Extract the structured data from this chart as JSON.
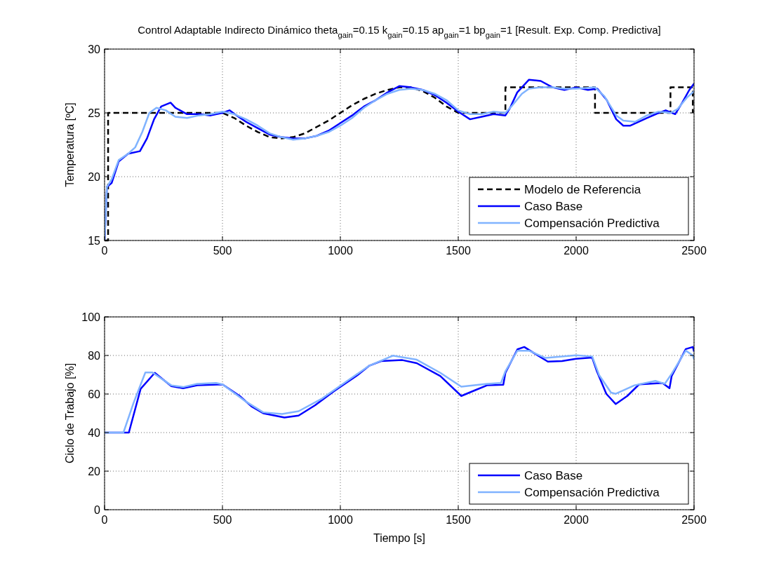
{
  "chart_data": [
    {
      "type": "line",
      "title": "Control Adaptable Indirecto Dinámico theta$_{gain}$=0.15 k$_{gain}$=0.15 ap$_{gain}$=1 bp$_{gain}$=1 [Result. Exp. Comp. Predictiva]",
      "ylabel": "Temperatura [ºC]",
      "xlim": [
        0,
        2500
      ],
      "xticks": [
        0,
        500,
        1000,
        1500,
        2000,
        2500
      ],
      "ylim": [
        15,
        30
      ],
      "yticks": [
        15,
        20,
        25,
        30
      ],
      "grid": true,
      "legend": "bottom right",
      "series": [
        {
          "name": "Modelo de Referencia",
          "color": "#000000",
          "line_style": "dashed",
          "x": [
            0,
            15,
            15,
            500,
            550,
            600,
            650,
            700,
            750,
            800,
            850,
            900,
            950,
            1000,
            1050,
            1100,
            1150,
            1200,
            1250,
            1300,
            1350,
            1400,
            1450,
            1500,
            1700,
            1700,
            2080,
            2080,
            2400,
            2400,
            2495,
            2495
          ],
          "values": [
            15,
            15,
            25,
            25,
            24.6,
            24.0,
            23.5,
            23.1,
            23.0,
            23.1,
            23.4,
            23.9,
            24.4,
            25.0,
            25.6,
            26.1,
            26.5,
            26.8,
            27.0,
            27.0,
            26.7,
            26.2,
            25.5,
            25.0,
            25,
            27,
            27,
            25,
            25,
            27,
            27,
            25
          ]
        },
        {
          "name": "Caso Base",
          "color": "#0000ff",
          "x": [
            0,
            10,
            30,
            60,
            100,
            150,
            180,
            210,
            240,
            280,
            300,
            350,
            400,
            450,
            500,
            530,
            560,
            600,
            650,
            700,
            750,
            800,
            850,
            900,
            950,
            1000,
            1050,
            1100,
            1150,
            1200,
            1250,
            1300,
            1350,
            1400,
            1450,
            1500,
            1550,
            1600,
            1650,
            1700,
            1720,
            1750,
            1800,
            1850,
            1900,
            1950,
            2000,
            2050,
            2090,
            2130,
            2170,
            2200,
            2230,
            2300,
            2350,
            2380,
            2420,
            2450,
            2480,
            2500
          ],
          "values": [
            15,
            19.2,
            19.5,
            21.2,
            21.8,
            22.0,
            23.0,
            24.5,
            25.5,
            25.8,
            25.4,
            24.9,
            24.9,
            24.8,
            25.0,
            25.2,
            24.8,
            24.3,
            23.8,
            23.3,
            23.1,
            23.0,
            23.0,
            23.2,
            23.6,
            24.2,
            24.8,
            25.5,
            26.0,
            26.6,
            27.1,
            27.0,
            26.8,
            26.4,
            25.8,
            25.1,
            24.5,
            24.7,
            24.9,
            24.8,
            25.4,
            26.6,
            27.6,
            27.5,
            27.0,
            26.8,
            27.0,
            26.8,
            26.9,
            26.0,
            24.5,
            24.0,
            24.0,
            24.6,
            25.0,
            25.2,
            24.9,
            25.8,
            26.8,
            27.3
          ]
        },
        {
          "name": "Compensación Predictiva",
          "color": "#80b3ff",
          "x": [
            0,
            10,
            30,
            60,
            100,
            130,
            160,
            190,
            220,
            260,
            300,
            350,
            400,
            450,
            500,
            550,
            600,
            650,
            700,
            750,
            800,
            850,
            900,
            950,
            1000,
            1050,
            1100,
            1150,
            1200,
            1250,
            1300,
            1350,
            1400,
            1450,
            1500,
            1550,
            1600,
            1650,
            1700,
            1730,
            1770,
            1800,
            1850,
            1900,
            1950,
            2000,
            2080,
            2120,
            2170,
            2200,
            2250,
            2300,
            2350,
            2400,
            2430,
            2470,
            2500
          ],
          "values": [
            15,
            19.2,
            19.8,
            21.3,
            21.8,
            22.3,
            23.5,
            25.0,
            25.4,
            25.2,
            24.7,
            24.6,
            24.8,
            24.9,
            25.1,
            24.9,
            24.5,
            24.0,
            23.4,
            23.1,
            22.9,
            23.0,
            23.2,
            23.5,
            24.0,
            24.6,
            25.4,
            26.0,
            26.5,
            26.8,
            26.9,
            26.8,
            26.5,
            26.0,
            25.2,
            24.9,
            24.9,
            25.1,
            25.0,
            25.6,
            26.5,
            26.9,
            27.0,
            27.0,
            26.9,
            26.9,
            27.0,
            26.3,
            24.8,
            24.4,
            24.3,
            24.8,
            25.1,
            25.0,
            25.3,
            26.2,
            26.7
          ]
        }
      ]
    },
    {
      "type": "line",
      "xlabel": "Tiempo [s]",
      "ylabel": "Ciclo de Trabajo [%]",
      "xlim": [
        0,
        2500
      ],
      "xticks": [
        0,
        500,
        1000,
        1500,
        2000,
        2500
      ],
      "ylim": [
        0,
        100
      ],
      "yticks": [
        0,
        20,
        40,
        60,
        80,
        100
      ],
      "grid": true,
      "legend": "bottom right",
      "series": [
        {
          "name": "Caso Base",
          "color": "#0000ff",
          "x": [
            0,
            103,
            153,
            213,
            283,
            333,
            393,
            500,
            573,
            623,
            673,
            763,
            823,
            893,
            973,
            1073,
            1123,
            1173,
            1263,
            1324,
            1424,
            1513,
            1572,
            1622,
            1691,
            1700,
            1751,
            1780,
            1820,
            1880,
            1940,
            1999,
            2068,
            2088,
            2128,
            2168,
            2217,
            2267,
            2366,
            2396,
            2405,
            2465,
            2495,
            2500
          ],
          "values": [
            40,
            40,
            62.7,
            71,
            64.1,
            63,
            64.5,
            65,
            59,
            53.6,
            50,
            47.8,
            48.8,
            54.2,
            61.5,
            69.8,
            74.7,
            77.1,
            77.6,
            76,
            69.3,
            59,
            62,
            64.5,
            64.8,
            71,
            83.2,
            84.4,
            81.3,
            76.8,
            77.1,
            78.3,
            78.9,
            71.8,
            60.1,
            54.8,
            59,
            65,
            65.7,
            63,
            69.3,
            83.3,
            84.4,
            82
          ]
        },
        {
          "name": "Compensación Predictiva",
          "color": "#80b3ff",
          "x": [
            0,
            80,
            123,
            173,
            203,
            283,
            333,
            393,
            473,
            500,
            593,
            673,
            753,
            823,
            923,
            1023,
            1123,
            1223,
            1324,
            1424,
            1513,
            1622,
            1681,
            1700,
            1751,
            1800,
            1870,
            1999,
            2068,
            2098,
            2148,
            2168,
            2247,
            2336,
            2376,
            2405,
            2465,
            2495,
            2500
          ],
          "values": [
            40,
            40,
            55.4,
            71.2,
            71.2,
            64.5,
            63.6,
            65.3,
            65.7,
            65,
            56.6,
            50.5,
            49.6,
            51.1,
            57.7,
            66.3,
            74.7,
            79.9,
            77.8,
            71,
            63.8,
            65.3,
            65.7,
            71.8,
            82.5,
            82.5,
            78.7,
            80.1,
            79.5,
            69.7,
            60.7,
            60.1,
            64.5,
            66.8,
            65.3,
            70.5,
            82.5,
            80,
            78
          ]
        }
      ]
    }
  ]
}
